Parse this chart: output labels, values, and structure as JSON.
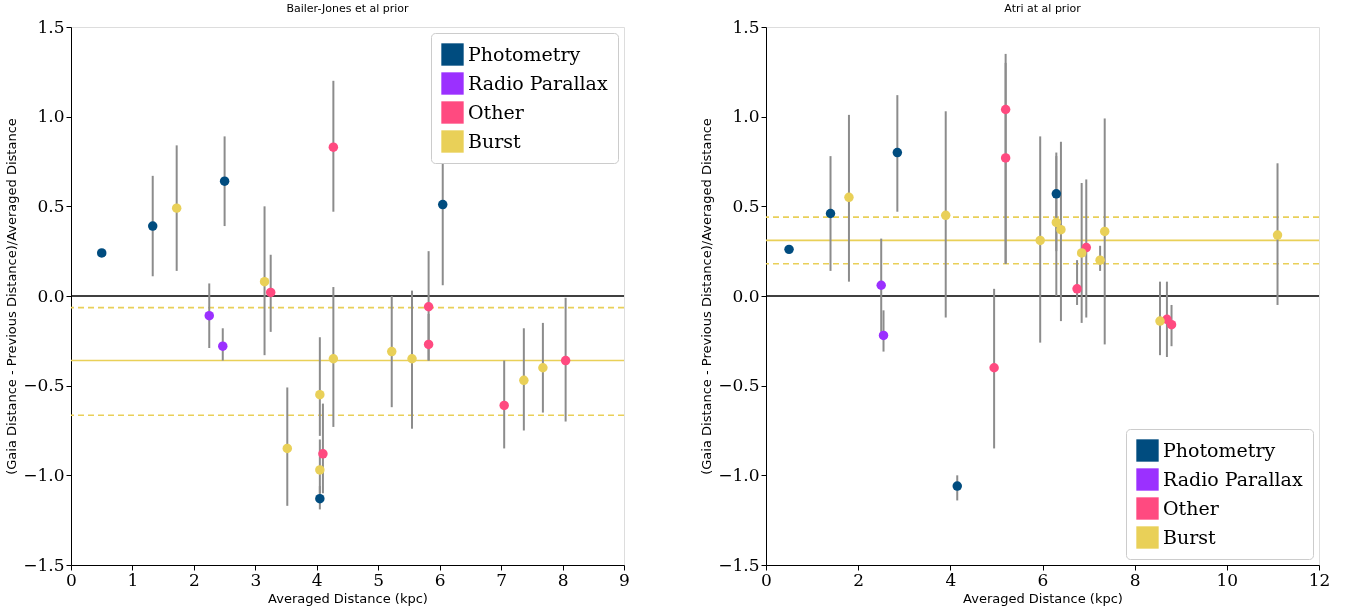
{
  "chart_data": [
    {
      "type": "scatter",
      "title": "Bailer-Jones et al prior",
      "xlabel": "Averaged Distance (kpc)",
      "ylabel": "(Gaia Distance - Previous Distance)/Averaged Distance",
      "xlim": [
        0,
        9
      ],
      "ylim": [
        -1.5,
        1.5
      ],
      "xticks": [
        0,
        1,
        2,
        3,
        4,
        5,
        6,
        7,
        8,
        9
      ],
      "yticks": [
        {
          "value": -1.5,
          "label": "−1.5"
        },
        {
          "value": -1.0,
          "label": "−1.0"
        },
        {
          "value": -0.5,
          "label": "−0.5"
        },
        {
          "value": 0,
          "label": "0.0"
        },
        {
          "value": 0.5,
          "label": "0.5"
        },
        {
          "value": 1.0,
          "label": "1.0"
        },
        {
          "value": 1.5,
          "label": "1.5"
        }
      ],
      "grid": false,
      "legend": "top right",
      "marker": "circle",
      "series": [
        {
          "name": "Photometry",
          "color": "#004c7f",
          "x": [
            0.5,
            1.33,
            2.5,
            6.05,
            4.05
          ],
          "values": [
            0.24,
            0.39,
            0.64,
            0.51,
            -1.13
          ],
          "errors": [
            null,
            [
              0.11,
              0.67
            ],
            [
              0.39,
              0.89
            ],
            [
              0.06,
              0.96
            ],
            [
              -1.19,
              -1.06
            ]
          ]
        },
        {
          "name": "Radio Parallax",
          "color": "#9b30ff",
          "x": [
            2.25,
            2.47
          ],
          "values": [
            -0.11,
            -0.28
          ],
          "errors": [
            [
              -0.29,
              0.07
            ],
            [
              -0.36,
              -0.18
            ]
          ]
        },
        {
          "name": "Other",
          "color": "#ff4a80",
          "x": [
            4.27,
            3.25,
            5.82,
            5.82,
            4.1,
            7.05,
            8.05
          ],
          "values": [
            0.83,
            0.02,
            -0.06,
            -0.27,
            -0.88,
            -0.61,
            -0.36
          ],
          "errors": [
            [
              0.47,
              1.2
            ],
            [
              -0.2,
              0.23
            ],
            [
              -0.36,
              0.25
            ],
            [
              -0.36,
              -0.1
            ],
            [
              -1.1,
              -0.6
            ],
            [
              -0.85,
              -0.36
            ],
            [
              -0.7,
              -0.01
            ]
          ]
        },
        {
          "name": "Burst",
          "color": "#e9d058",
          "x": [
            1.72,
            3.15,
            4.27,
            4.05,
            4.05,
            3.52,
            5.22,
            5.55,
            7.37,
            7.68
          ],
          "values": [
            0.49,
            0.08,
            -0.35,
            -0.55,
            -0.97,
            -0.85,
            -0.31,
            -0.35,
            -0.47,
            -0.4
          ],
          "errors": [
            [
              0.14,
              0.84
            ],
            [
              -0.33,
              0.5
            ],
            [
              -0.73,
              0.05
            ],
            [
              -0.78,
              -0.23
            ],
            [
              -1.1,
              -0.8
            ],
            [
              -1.17,
              -0.51
            ],
            [
              -0.62,
              0.0
            ],
            [
              -0.74,
              0.03
            ],
            [
              -0.75,
              -0.18
            ],
            [
              -0.65,
              -0.15
            ]
          ]
        }
      ],
      "ref_lines": [
        {
          "axis": "y",
          "value": 0,
          "color": "#000000",
          "line_style": "solid"
        },
        {
          "axis": "y",
          "value": -0.36,
          "color": "#e9d058",
          "line_style": "solid"
        },
        {
          "axis": "y",
          "value": -0.065,
          "color": "#e9d058",
          "line_style": "dashed"
        },
        {
          "axis": "y",
          "value": -0.665,
          "color": "#e9d058",
          "line_style": "dashed"
        }
      ]
    },
    {
      "type": "scatter",
      "title": "Atri at al prior",
      "xlabel": "Averaged Distance (kpc)",
      "ylabel": "(Gaia Distance - Previous Distance)/Averaged Distance",
      "xlim": [
        0,
        12
      ],
      "ylim": [
        -1.5,
        1.5
      ],
      "xticks": [
        0,
        2,
        4,
        6,
        8,
        10,
        12
      ],
      "yticks": [
        {
          "value": -1.5,
          "label": "−1.5"
        },
        {
          "value": -1.0,
          "label": "−1.0"
        },
        {
          "value": -0.5,
          "label": "−0.5"
        },
        {
          "value": 0,
          "label": "0.0"
        },
        {
          "value": 0.5,
          "label": "0.5"
        },
        {
          "value": 1.0,
          "label": "1.0"
        },
        {
          "value": 1.5,
          "label": "1.5"
        }
      ],
      "grid": false,
      "legend": "bottom right",
      "marker": "circle",
      "series": [
        {
          "name": "Photometry",
          "color": "#004c7f",
          "x": [
            0.5,
            1.4,
            2.85,
            6.3,
            4.15
          ],
          "values": [
            0.26,
            0.46,
            0.8,
            0.57,
            -1.06
          ],
          "errors": [
            null,
            [
              0.14,
              0.78
            ],
            [
              0.47,
              1.12
            ],
            [
              0.25,
              0.8
            ],
            [
              -1.14,
              -1.0
            ]
          ]
        },
        {
          "name": "Radio Parallax",
          "color": "#9b30ff",
          "x": [
            2.5,
            2.55
          ],
          "values": [
            0.06,
            -0.22
          ],
          "errors": [
            [
              -0.2,
              0.32
            ],
            [
              -0.31,
              -0.08
            ]
          ]
        },
        {
          "name": "Other",
          "color": "#ff4a80",
          "x": [
            5.2,
            5.2,
            4.95,
            6.75,
            6.95,
            8.7,
            8.8
          ],
          "values": [
            1.04,
            0.77,
            -0.4,
            0.04,
            0.27,
            -0.13,
            -0.16
          ],
          "errors": [
            [
              0.18,
              1.35
            ],
            [
              0.18,
              1.3
            ],
            [
              -0.85,
              0.04
            ],
            [
              -0.05,
              0.2
            ],
            [
              -0.12,
              0.65
            ],
            [
              -0.34,
              0.08
            ],
            [
              -0.28,
              -0.05
            ]
          ]
        },
        {
          "name": "Burst",
          "color": "#e9d058",
          "x": [
            1.8,
            3.9,
            5.95,
            6.3,
            6.4,
            6.85,
            7.25,
            7.35,
            8.55,
            11.1
          ],
          "values": [
            0.55,
            0.45,
            0.31,
            0.41,
            0.37,
            0.24,
            0.2,
            0.36,
            -0.14,
            0.34
          ],
          "errors": [
            [
              0.08,
              1.01
            ],
            [
              -0.12,
              1.03
            ],
            [
              -0.26,
              0.89
            ],
            [
              0.0,
              0.78
            ],
            [
              -0.14,
              0.86
            ],
            [
              -0.15,
              0.63
            ],
            [
              0.14,
              0.28
            ],
            [
              -0.27,
              0.99
            ],
            [
              -0.33,
              0.08
            ],
            [
              -0.05,
              0.74
            ]
          ]
        }
      ],
      "ref_lines": [
        {
          "axis": "y",
          "value": 0,
          "color": "#000000",
          "line_style": "solid"
        },
        {
          "axis": "y",
          "value": 0.31,
          "color": "#e9d058",
          "line_style": "solid"
        },
        {
          "axis": "y",
          "value": 0.44,
          "color": "#e9d058",
          "line_style": "dashed"
        },
        {
          "axis": "y",
          "value": 0.18,
          "color": "#e9d058",
          "line_style": "dashed"
        }
      ]
    }
  ]
}
